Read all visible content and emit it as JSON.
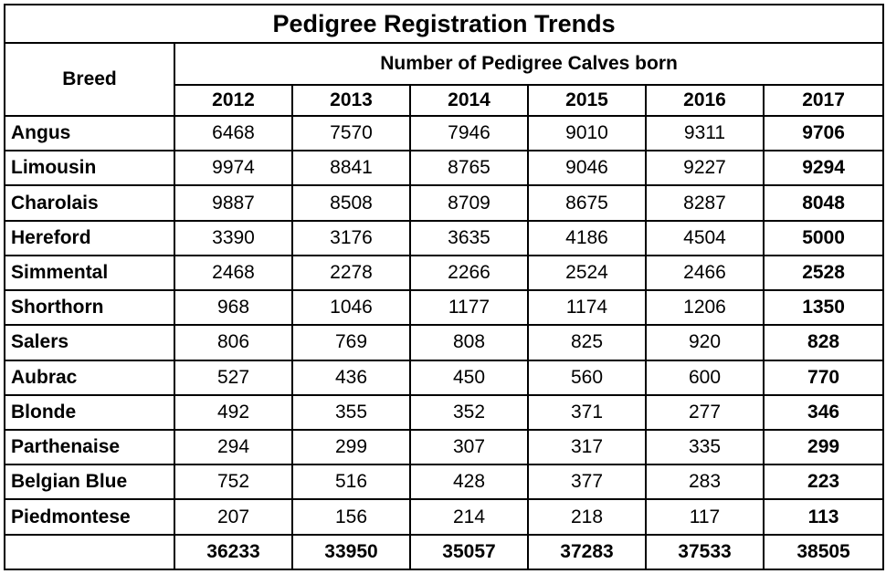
{
  "chart_data": {
    "type": "table",
    "title": "Pedigree Registration Trends",
    "row_header": "Breed",
    "column_group_header": "Number of Pedigree Calves born",
    "years": [
      "2012",
      "2013",
      "2014",
      "2015",
      "2016",
      "2017"
    ],
    "rows": [
      {
        "breed": "Angus",
        "values": [
          "6468",
          "7570",
          "7946",
          "9010",
          "9311",
          "9706"
        ]
      },
      {
        "breed": "Limousin",
        "values": [
          "9974",
          "8841",
          "8765",
          "9046",
          "9227",
          "9294"
        ]
      },
      {
        "breed": "Charolais",
        "values": [
          "9887",
          "8508",
          "8709",
          "8675",
          "8287",
          "8048"
        ]
      },
      {
        "breed": "Hereford",
        "values": [
          "3390",
          "3176",
          "3635",
          "4186",
          "4504",
          "5000"
        ]
      },
      {
        "breed": "Simmental",
        "values": [
          "2468",
          "2278",
          "2266",
          "2524",
          "2466",
          "2528"
        ]
      },
      {
        "breed": "Shorthorn",
        "values": [
          "968",
          "1046",
          "1177",
          "1174",
          "1206",
          "1350"
        ]
      },
      {
        "breed": "Salers",
        "values": [
          "806",
          "769",
          "808",
          "825",
          "920",
          "828"
        ]
      },
      {
        "breed": "Aubrac",
        "values": [
          "527",
          "436",
          "450",
          "560",
          "600",
          "770"
        ]
      },
      {
        "breed": "Blonde",
        "values": [
          "492",
          "355",
          "352",
          "371",
          "277",
          "346"
        ]
      },
      {
        "breed": "Parthenaise",
        "values": [
          "294",
          "299",
          "307",
          "317",
          "335",
          "299"
        ]
      },
      {
        "breed": "Belgian Blue",
        "values": [
          "752",
          "516",
          "428",
          "377",
          "283",
          "223"
        ]
      },
      {
        "breed": "Piedmontese",
        "values": [
          "207",
          "156",
          "214",
          "218",
          "117",
          "113"
        ]
      }
    ],
    "totals": [
      "36233",
      "33950",
      "35057",
      "37283",
      "37533",
      "38505"
    ]
  }
}
